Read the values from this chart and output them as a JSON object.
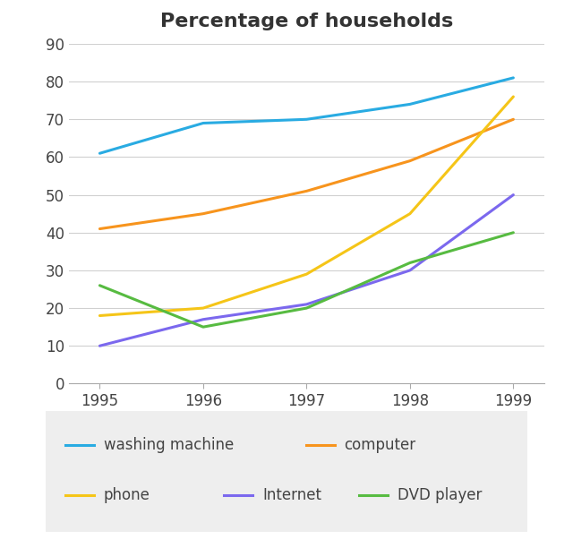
{
  "title": "Percentage of households",
  "years": [
    1995,
    1996,
    1997,
    1998,
    1999
  ],
  "series": {
    "washing machine": {
      "values": [
        61,
        69,
        70,
        74,
        81
      ],
      "color": "#29ABE2"
    },
    "computer": {
      "values": [
        41,
        45,
        51,
        59,
        70
      ],
      "color": "#F7941D"
    },
    "phone": {
      "values": [
        18,
        20,
        29,
        45,
        76
      ],
      "color": "#F5C518"
    },
    "Internet": {
      "values": [
        10,
        17,
        21,
        30,
        50
      ],
      "color": "#7B68EE"
    },
    "DVD player": {
      "values": [
        26,
        15,
        20,
        32,
        40
      ],
      "color": "#57BB41"
    }
  },
  "legend_order": [
    "washing machine",
    "computer",
    "phone",
    "Internet",
    "DVD player"
  ],
  "ylim": [
    0,
    90
  ],
  "yticks": [
    0,
    10,
    20,
    30,
    40,
    50,
    60,
    70,
    80,
    90
  ],
  "xlim": [
    1994.7,
    1999.3
  ],
  "xticks": [
    1995,
    1996,
    1997,
    1998,
    1999
  ],
  "background_color": "#ffffff",
  "plot_bg_color": "#ffffff",
  "grid_color": "#d0d0d0",
  "title_fontsize": 16,
  "tick_fontsize": 12,
  "legend_fontsize": 12,
  "line_width": 2.2
}
